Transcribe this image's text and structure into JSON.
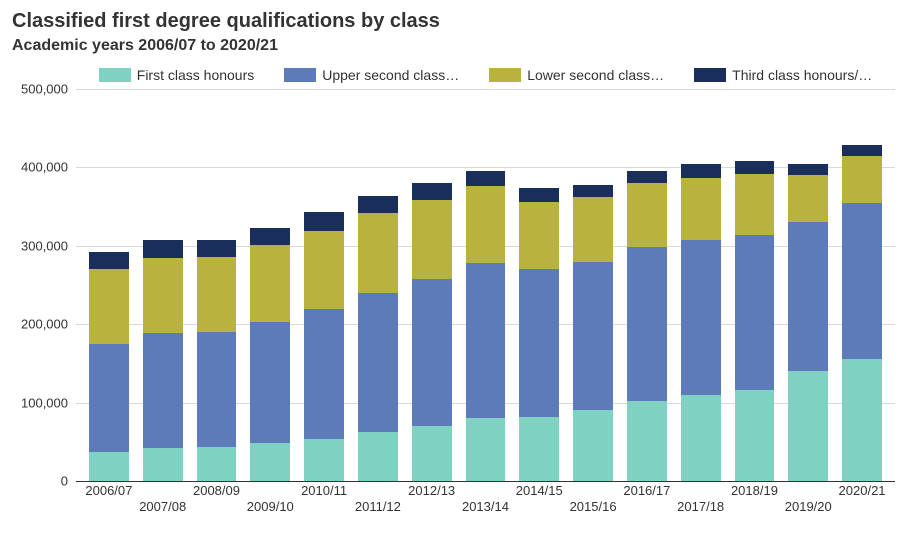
{
  "title": "Classified first degree qualifications by class",
  "subtitle": "Academic years 2006/07 to 2020/21",
  "chart": {
    "type": "stacked-bar",
    "background_color": "#ffffff",
    "grid_color": "#d9d9d9",
    "axis_color": "#333333",
    "title_fontsize": 20,
    "subtitle_fontsize": 16,
    "label_fontsize": 13,
    "ylim": [
      0,
      500000
    ],
    "ytick_step": 100000,
    "ytick_labels": [
      "0",
      "100,000",
      "200,000",
      "300,000",
      "400,000",
      "500,000"
    ],
    "categories": [
      "2006/07",
      "2007/08",
      "2008/09",
      "2009/10",
      "2010/11",
      "2011/12",
      "2012/13",
      "2013/14",
      "2014/15",
      "2015/16",
      "2016/17",
      "2017/18",
      "2018/19",
      "2019/20",
      "2020/21"
    ],
    "x_label_stagger": true,
    "series": [
      {
        "key": "first",
        "label": "First class honours",
        "color": "#7fd1c1"
      },
      {
        "key": "upper",
        "label": "Upper second class…",
        "color": "#5c7bb8"
      },
      {
        "key": "lower",
        "label": "Lower second class…",
        "color": "#b8b23f"
      },
      {
        "key": "third",
        "label": "Third class honours/…",
        "color": "#1a2e5c"
      }
    ],
    "values": {
      "first": [
        37000,
        42000,
        44000,
        48000,
        54000,
        62000,
        70000,
        80000,
        82000,
        90000,
        102000,
        110000,
        116000,
        140000,
        155000
      ],
      "upper": [
        138000,
        147000,
        146000,
        155000,
        165000,
        178000,
        188000,
        198000,
        188000,
        190000,
        196000,
        198000,
        198000,
        190000,
        200000
      ],
      "lower": [
        95000,
        95000,
        96000,
        98000,
        100000,
        102000,
        100000,
        98000,
        86000,
        82000,
        82000,
        78000,
        78000,
        60000,
        60000
      ],
      "third": [
        22000,
        24000,
        22000,
        22000,
        24000,
        22000,
        22000,
        20000,
        18000,
        16000,
        16000,
        18000,
        16000,
        14000,
        14000
      ]
    },
    "bar_width_ratio": 0.74
  }
}
